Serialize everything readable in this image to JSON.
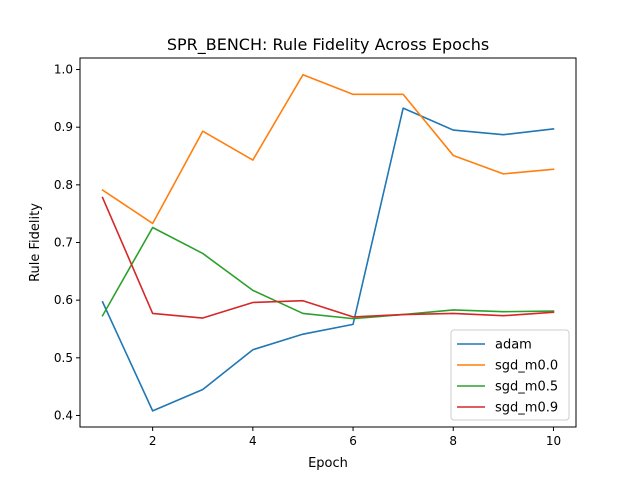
{
  "chart_data": {
    "type": "line",
    "title": "SPR_BENCH: Rule Fidelity Across Epochs",
    "xlabel": "Epoch",
    "ylabel": "Rule Fidelity",
    "x": [
      1,
      2,
      3,
      4,
      5,
      6,
      7,
      8,
      9,
      10
    ],
    "xlim": [
      0.55,
      10.45
    ],
    "ylim": [
      0.38,
      1.02
    ],
    "xticks": [
      2,
      4,
      6,
      8,
      10
    ],
    "yticks": [
      0.4,
      0.5,
      0.6,
      0.7,
      0.8,
      0.9,
      1.0
    ],
    "ytick_labels": [
      "0.4",
      "0.5",
      "0.6",
      "0.7",
      "0.8",
      "0.9",
      "1.0"
    ],
    "grid": false,
    "legend_position": "lower-right",
    "series": [
      {
        "name": "adam",
        "color": "#1f77b4",
        "values": [
          0.597,
          0.408,
          0.445,
          0.514,
          0.541,
          0.558,
          0.933,
          0.895,
          0.887,
          0.897
        ]
      },
      {
        "name": "sgd_m0.0",
        "color": "#ff7f0e",
        "values": [
          0.791,
          0.733,
          0.893,
          0.843,
          0.991,
          0.957,
          0.957,
          0.851,
          0.819,
          0.827
        ]
      },
      {
        "name": "sgd_m0.5",
        "color": "#2ca02c",
        "values": [
          0.573,
          0.726,
          0.681,
          0.617,
          0.577,
          0.568,
          0.575,
          0.583,
          0.58,
          0.581
        ]
      },
      {
        "name": "sgd_m0.9",
        "color": "#d62728",
        "values": [
          0.778,
          0.577,
          0.569,
          0.596,
          0.599,
          0.571,
          0.575,
          0.577,
          0.573,
          0.579
        ]
      }
    ]
  }
}
